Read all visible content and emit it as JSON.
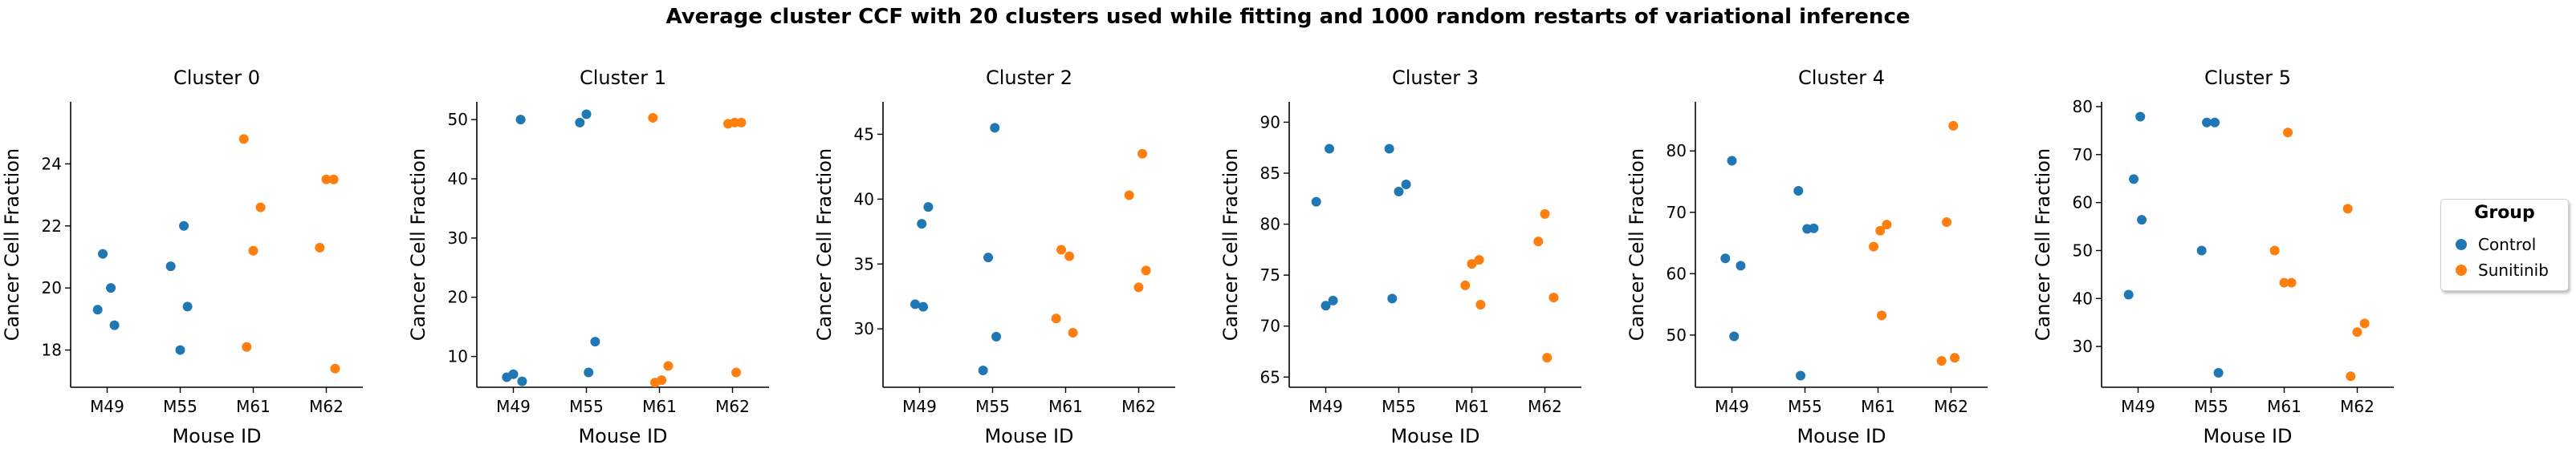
{
  "title": "Average cluster CCF with 20 clusters used while fitting and 1000 random restarts of variational inference",
  "colors": {
    "Control": "#1f77b4",
    "Sunitinib": "#ff7f0e"
  },
  "legend": {
    "title": "Group",
    "placement": "right",
    "items": [
      {
        "label": "Control",
        "color": "#1f77b4"
      },
      {
        "label": "Sunitinib",
        "color": "#ff7f0e"
      }
    ]
  },
  "chart_data": [
    {
      "type": "scatter",
      "title": "Cluster 0",
      "xlabel": "Mouse ID",
      "ylabel": "Cancer Cell Fraction",
      "categories": [
        "M49",
        "M55",
        "M61",
        "M62"
      ],
      "ylim": [
        16.8,
        26.0
      ],
      "yticks": [
        18,
        20,
        22,
        24
      ],
      "series": [
        {
          "name": "Control",
          "points": [
            {
              "x": "M49",
              "y": 21.1
            },
            {
              "x": "M49",
              "y": 20.0
            },
            {
              "x": "M49",
              "y": 19.3
            },
            {
              "x": "M49",
              "y": 18.8
            },
            {
              "x": "M55",
              "y": 22.0
            },
            {
              "x": "M55",
              "y": 20.7
            },
            {
              "x": "M55",
              "y": 19.4
            },
            {
              "x": "M55",
              "y": 18.0
            }
          ]
        },
        {
          "name": "Sunitinib",
          "points": [
            {
              "x": "M61",
              "y": 24.8
            },
            {
              "x": "M61",
              "y": 22.6
            },
            {
              "x": "M61",
              "y": 21.2
            },
            {
              "x": "M61",
              "y": 18.1
            },
            {
              "x": "M62",
              "y": 23.5
            },
            {
              "x": "M62",
              "y": 23.5
            },
            {
              "x": "M62",
              "y": 21.3
            },
            {
              "x": "M62",
              "y": 17.4
            }
          ]
        }
      ]
    },
    {
      "type": "scatter",
      "title": "Cluster 1",
      "xlabel": "Mouse ID",
      "ylabel": "Cancer Cell Fraction",
      "categories": [
        "M49",
        "M55",
        "M61",
        "M62"
      ],
      "ylim": [
        4.8,
        53.0
      ],
      "yticks": [
        10,
        20,
        30,
        40,
        50
      ],
      "series": [
        {
          "name": "Control",
          "points": [
            {
              "x": "M49",
              "y": 50.0
            },
            {
              "x": "M49",
              "y": 7.0
            },
            {
              "x": "M49",
              "y": 6.5
            },
            {
              "x": "M49",
              "y": 5.8
            },
            {
              "x": "M55",
              "y": 50.9
            },
            {
              "x": "M55",
              "y": 49.5
            },
            {
              "x": "M55",
              "y": 12.5
            },
            {
              "x": "M55",
              "y": 7.3
            }
          ]
        },
        {
          "name": "Sunitinib",
          "points": [
            {
              "x": "M61",
              "y": 50.3
            },
            {
              "x": "M61",
              "y": 8.4
            },
            {
              "x": "M61",
              "y": 6.0
            },
            {
              "x": "M61",
              "y": 5.6
            },
            {
              "x": "M62",
              "y": 49.5
            },
            {
              "x": "M62",
              "y": 49.5
            },
            {
              "x": "M62",
              "y": 49.3
            },
            {
              "x": "M62",
              "y": 7.3
            }
          ]
        }
      ]
    },
    {
      "type": "scatter",
      "title": "Cluster 2",
      "xlabel": "Mouse ID",
      "ylabel": "Cancer Cell Fraction",
      "categories": [
        "M49",
        "M55",
        "M61",
        "M62"
      ],
      "ylim": [
        25.5,
        47.5
      ],
      "yticks": [
        30,
        35,
        40,
        45
      ],
      "series": [
        {
          "name": "Control",
          "points": [
            {
              "x": "M49",
              "y": 39.4
            },
            {
              "x": "M49",
              "y": 38.1
            },
            {
              "x": "M49",
              "y": 31.9
            },
            {
              "x": "M49",
              "y": 31.7
            },
            {
              "x": "M55",
              "y": 45.5
            },
            {
              "x": "M55",
              "y": 35.5
            },
            {
              "x": "M55",
              "y": 29.4
            },
            {
              "x": "M55",
              "y": 26.8
            }
          ]
        },
        {
          "name": "Sunitinib",
          "points": [
            {
              "x": "M61",
              "y": 36.1
            },
            {
              "x": "M61",
              "y": 35.6
            },
            {
              "x": "M61",
              "y": 30.8
            },
            {
              "x": "M61",
              "y": 29.7
            },
            {
              "x": "M62",
              "y": 43.5
            },
            {
              "x": "M62",
              "y": 40.3
            },
            {
              "x": "M62",
              "y": 34.5
            },
            {
              "x": "M62",
              "y": 33.2
            }
          ]
        }
      ]
    },
    {
      "type": "scatter",
      "title": "Cluster 3",
      "xlabel": "Mouse ID",
      "ylabel": "Cancer Cell Fraction",
      "categories": [
        "M49",
        "M55",
        "M61",
        "M62"
      ],
      "ylim": [
        64.0,
        92.0
      ],
      "yticks": [
        65,
        70,
        75,
        80,
        85,
        90
      ],
      "series": [
        {
          "name": "Control",
          "points": [
            {
              "x": "M49",
              "y": 87.4
            },
            {
              "x": "M49",
              "y": 82.2
            },
            {
              "x": "M49",
              "y": 72.5
            },
            {
              "x": "M49",
              "y": 72.0
            },
            {
              "x": "M55",
              "y": 87.4
            },
            {
              "x": "M55",
              "y": 83.9
            },
            {
              "x": "M55",
              "y": 83.2
            },
            {
              "x": "M55",
              "y": 72.7
            }
          ]
        },
        {
          "name": "Sunitinib",
          "points": [
            {
              "x": "M61",
              "y": 76.5
            },
            {
              "x": "M61",
              "y": 76.1
            },
            {
              "x": "M61",
              "y": 74.0
            },
            {
              "x": "M61",
              "y": 72.1
            },
            {
              "x": "M62",
              "y": 81.0
            },
            {
              "x": "M62",
              "y": 78.3
            },
            {
              "x": "M62",
              "y": 72.8
            },
            {
              "x": "M62",
              "y": 66.9
            }
          ]
        }
      ]
    },
    {
      "type": "scatter",
      "title": "Cluster 4",
      "xlabel": "Mouse ID",
      "ylabel": "Cancer Cell Fraction",
      "categories": [
        "M49",
        "M55",
        "M61",
        "M62"
      ],
      "ylim": [
        41.5,
        88.0
      ],
      "yticks": [
        50,
        60,
        70,
        80
      ],
      "series": [
        {
          "name": "Control",
          "points": [
            {
              "x": "M49",
              "y": 78.4
            },
            {
              "x": "M49",
              "y": 62.5
            },
            {
              "x": "M49",
              "y": 61.3
            },
            {
              "x": "M49",
              "y": 49.8
            },
            {
              "x": "M55",
              "y": 73.5
            },
            {
              "x": "M55",
              "y": 67.4
            },
            {
              "x": "M55",
              "y": 67.3
            },
            {
              "x": "M55",
              "y": 43.4
            }
          ]
        },
        {
          "name": "Sunitinib",
          "points": [
            {
              "x": "M61",
              "y": 68.0
            },
            {
              "x": "M61",
              "y": 67.0
            },
            {
              "x": "M61",
              "y": 64.4
            },
            {
              "x": "M61",
              "y": 53.2
            },
            {
              "x": "M62",
              "y": 84.1
            },
            {
              "x": "M62",
              "y": 68.4
            },
            {
              "x": "M62",
              "y": 46.3
            },
            {
              "x": "M62",
              "y": 45.8
            }
          ]
        }
      ]
    },
    {
      "type": "scatter",
      "title": "Cluster 5",
      "xlabel": "Mouse ID",
      "ylabel": "Cancer Cell Fraction",
      "categories": [
        "M49",
        "M55",
        "M61",
        "M62"
      ],
      "ylim": [
        21.5,
        81.0
      ],
      "yticks": [
        30,
        40,
        50,
        60,
        70,
        80
      ],
      "series": [
        {
          "name": "Control",
          "points": [
            {
              "x": "M49",
              "y": 77.9
            },
            {
              "x": "M49",
              "y": 64.9
            },
            {
              "x": "M49",
              "y": 56.4
            },
            {
              "x": "M49",
              "y": 40.8
            },
            {
              "x": "M55",
              "y": 76.7
            },
            {
              "x": "M55",
              "y": 76.7
            },
            {
              "x": "M55",
              "y": 50.0
            },
            {
              "x": "M55",
              "y": 24.5
            }
          ]
        },
        {
          "name": "Sunitinib",
          "points": [
            {
              "x": "M61",
              "y": 74.6
            },
            {
              "x": "M61",
              "y": 50.0
            },
            {
              "x": "M61",
              "y": 43.3
            },
            {
              "x": "M61",
              "y": 43.3
            },
            {
              "x": "M62",
              "y": 58.7
            },
            {
              "x": "M62",
              "y": 34.8
            },
            {
              "x": "M62",
              "y": 33.0
            },
            {
              "x": "M62",
              "y": 23.8
            }
          ]
        }
      ]
    }
  ]
}
